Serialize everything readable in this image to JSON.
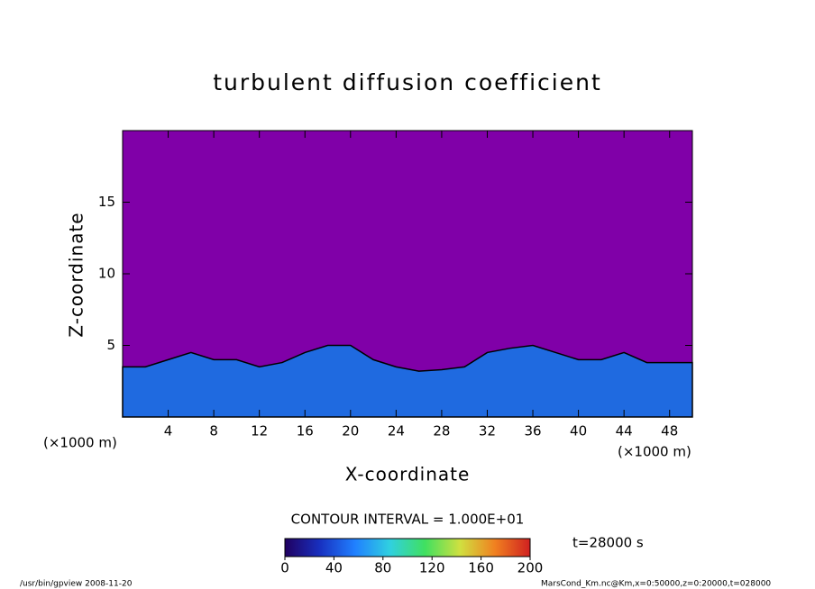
{
  "chart_data": {
    "type": "contour",
    "title": "turbulent diffusion coefficient",
    "x_label": "X-coordinate",
    "y_label": "Z-coordinate",
    "x_unit_left": "(×1000 m)",
    "x_unit_right": "(×1000 m)",
    "xlim": [
      0,
      50
    ],
    "ylim": [
      0,
      20
    ],
    "xticks": [
      4,
      8,
      12,
      16,
      20,
      24,
      28,
      32,
      36,
      40,
      44,
      48
    ],
    "yticks": [
      5,
      10,
      15
    ],
    "background": "#8000a8",
    "color": "#1f6ae0",
    "x": [
      0,
      2,
      4,
      6,
      8,
      10,
      12,
      14,
      16,
      18,
      20,
      22,
      24,
      26,
      28,
      30,
      32,
      34,
      36,
      38,
      40,
      42,
      44,
      46,
      48,
      50
    ],
    "values": [
      3.5,
      3.5,
      4,
      4.5,
      4,
      4,
      3.5,
      3.8,
      4.5,
      5,
      5,
      4,
      3.5,
      3.2,
      3.3,
      3.5,
      4.5,
      4.8,
      5,
      4.5,
      4,
      4,
      4.5,
      3.8,
      3.8,
      3.8
    ],
    "contour_interval": "CONTOUR INTERVAL = 1.000E+01",
    "colorbar": {
      "clim": [
        0,
        200
      ],
      "ticks": [
        0,
        40,
        80,
        120,
        160,
        200
      ],
      "colors": [
        "#200060",
        "#1830c0",
        "#2080ff",
        "#30d0e0",
        "#40e060",
        "#d0e040",
        "#f08020",
        "#d02020"
      ]
    },
    "time_label": "t=28000 s",
    "footer_left": "/usr/bin/gpview   2008-11-20",
    "footer_right": "MarsCond_Km.nc@Km,x=0:50000,z=0:20000,t=028000"
  }
}
